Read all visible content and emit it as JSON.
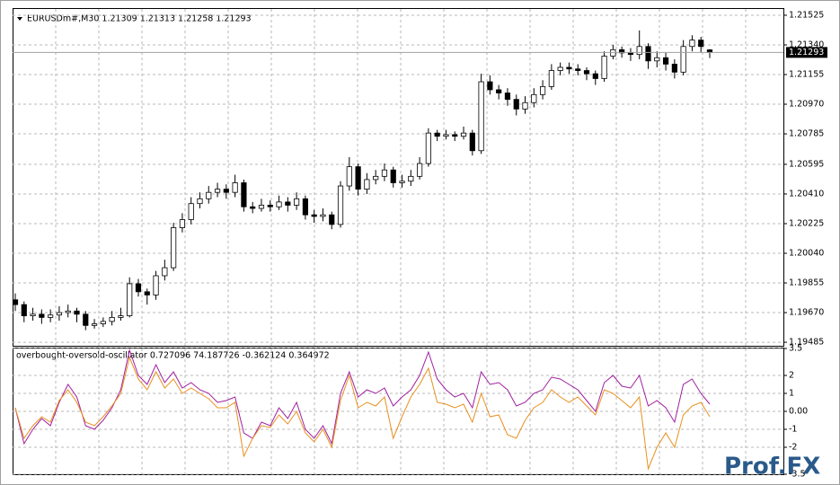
{
  "chart_data": [
    {
      "type": "candlestick",
      "title": "EURUSDm#,M30  1.21309 1.21313 1.21258 1.21293",
      "open": [
        1.1975,
        1.1972,
        1.1965,
        1.1966,
        1.1964,
        1.19655,
        1.1967,
        1.1968,
        1.1966,
        1.1959,
        1.196,
        1.19615,
        1.1964,
        1.1965,
        1.1985,
        1.198,
        1.1978,
        1.199,
        1.1995,
        1.202,
        1.2025,
        1.2035,
        1.2038,
        1.2042,
        1.2044,
        1.2042,
        1.2048,
        1.2033,
        1.2032,
        1.2034,
        1.2033,
        1.2036,
        1.2034,
        1.2038,
        1.2028,
        1.2027,
        1.2028,
        1.2022,
        1.2046,
        1.2058,
        1.2044,
        1.205,
        1.2052,
        1.2056,
        1.2048,
        1.2049,
        1.2052,
        1.206,
        1.2079,
        1.2077,
        1.2078,
        1.2077,
        1.2079,
        1.2068,
        1.2111,
        1.2106,
        1.2104,
        1.21,
        1.2094,
        1.2098,
        1.2103,
        1.2108,
        1.2118,
        1.212,
        1.2119,
        1.2118,
        1.2116,
        1.2113,
        1.2127,
        1.2131,
        1.2129,
        1.2128,
        1.2133,
        1.2124,
        1.2126,
        1.2122,
        1.2117,
        1.2133,
        1.2137,
        1.21309
      ],
      "high": [
        1.1979,
        1.1974,
        1.197,
        1.1969,
        1.1969,
        1.1971,
        1.1972,
        1.197,
        1.1968,
        1.1963,
        1.1964,
        1.1968,
        1.197,
        1.1989,
        1.1988,
        1.1982,
        1.1993,
        1.2,
        1.2023,
        1.2029,
        1.2039,
        1.2042,
        1.2046,
        1.2048,
        1.2047,
        1.2053,
        1.205,
        1.2036,
        1.2038,
        1.2037,
        1.204,
        1.2039,
        1.2042,
        1.204,
        1.2031,
        1.2032,
        1.203,
        1.2049,
        1.2064,
        1.206,
        1.2054,
        1.2056,
        1.206,
        1.2058,
        1.2053,
        1.2056,
        1.2064,
        1.2082,
        1.2081,
        1.2081,
        1.208,
        1.2083,
        1.2081,
        1.2116,
        1.2115,
        1.2109,
        1.2107,
        1.2103,
        1.2102,
        1.2107,
        1.2112,
        1.2122,
        1.2123,
        1.2123,
        1.2122,
        1.212,
        1.2118,
        1.213,
        1.2134,
        1.2133,
        1.2132,
        1.2143,
        1.2135,
        1.213,
        1.2129,
        1.2125,
        1.2137,
        1.214,
        1.2139,
        1.21313
      ],
      "low": [
        1.1968,
        1.1961,
        1.1962,
        1.196,
        1.1961,
        1.1962,
        1.1964,
        1.1961,
        1.1956,
        1.1957,
        1.1958,
        1.1959,
        1.1962,
        1.1964,
        1.1977,
        1.1972,
        1.1975,
        1.1987,
        1.1993,
        1.2017,
        1.2022,
        1.2032,
        1.2035,
        1.2039,
        1.2038,
        1.2039,
        1.203,
        1.2029,
        1.203,
        1.203,
        1.2031,
        1.203,
        1.2031,
        1.2025,
        1.2023,
        1.2024,
        1.2019,
        1.202,
        1.2043,
        1.204,
        1.2041,
        1.2047,
        1.2049,
        1.2045,
        1.2045,
        1.2046,
        1.205,
        1.2058,
        1.2074,
        1.2075,
        1.2074,
        1.2075,
        1.2065,
        1.2066,
        1.2103,
        1.21,
        1.2096,
        1.209,
        1.2091,
        1.2095,
        1.21,
        1.2106,
        1.2115,
        1.2116,
        1.2115,
        1.2112,
        1.2109,
        1.2111,
        1.2125,
        1.2126,
        1.2124,
        1.2125,
        1.2119,
        1.212,
        1.2118,
        1.2113,
        1.2115,
        1.213,
        1.2129,
        1.21258
      ],
      "close": [
        1.1972,
        1.1965,
        1.1966,
        1.1964,
        1.19655,
        1.1967,
        1.1968,
        1.1966,
        1.1959,
        1.196,
        1.19615,
        1.1964,
        1.1965,
        1.1985,
        1.198,
        1.1978,
        1.199,
        1.1995,
        1.202,
        1.2025,
        1.2035,
        1.2038,
        1.2042,
        1.2044,
        1.2042,
        1.2048,
        1.2033,
        1.2032,
        1.2034,
        1.2033,
        1.2036,
        1.2034,
        1.2038,
        1.2028,
        1.2027,
        1.2028,
        1.2022,
        1.2046,
        1.2058,
        1.2044,
        1.205,
        1.2052,
        1.2056,
        1.2048,
        1.2049,
        1.2052,
        1.206,
        1.2079,
        1.2077,
        1.2078,
        1.2077,
        1.2079,
        1.2068,
        1.2111,
        1.2106,
        1.2104,
        1.21,
        1.2094,
        1.2098,
        1.2103,
        1.2108,
        1.2118,
        1.212,
        1.2119,
        1.2118,
        1.2116,
        1.2113,
        1.2127,
        1.2131,
        1.2129,
        1.2128,
        1.2133,
        1.2124,
        1.2126,
        1.2122,
        1.2117,
        1.2133,
        1.2137,
        1.2133,
        1.21293
      ],
      "up_color": "#ffffff",
      "down_color": "#000000",
      "ylim": [
        1.19463,
        1.21564
      ],
      "yticks": [
        1.21525,
        {
          "value": 1.2134,
          "label": "1.21340"
        },
        1.21155,
        {
          "value": 1.2097,
          "label": "1.20970"
        },
        1.20785,
        1.20595,
        {
          "value": 1.2041,
          "label": "1.20410"
        },
        1.20225,
        {
          "value": 1.2004,
          "label": "1.20040"
        },
        1.19855,
        {
          "value": 1.1967,
          "label": "1.19670"
        },
        1.19485
      ],
      "last_price": 1.21293,
      "grid": true
    },
    {
      "type": "line",
      "title": "overbought-oversold-oscillator 0.727096 74.187726 -0.362124 0.364972",
      "series": [
        {
          "color": "#a020a0",
          "values": [
            0.2,
            -1.8,
            -1.0,
            -0.4,
            -0.8,
            0.5,
            1.5,
            0.8,
            -0.8,
            -1.0,
            -0.5,
            0.2,
            1.2,
            3.4,
            2.0,
            1.5,
            2.6,
            1.6,
            2.2,
            1.3,
            1.6,
            1.2,
            1.0,
            0.5,
            0.6,
            0.8,
            -1.2,
            -1.5,
            -0.6,
            -0.8,
            0.2,
            -0.4,
            0.5,
            -1.0,
            -1.5,
            -0.8,
            -1.8,
            1.0,
            2.2,
            0.8,
            1.2,
            1.0,
            1.3,
            0.3,
            0.8,
            1.2,
            2.0,
            3.3,
            1.8,
            1.2,
            0.8,
            1.0,
            0.2,
            2.2,
            1.5,
            1.6,
            1.2,
            0.3,
            0.5,
            1.0,
            1.2,
            1.9,
            1.8,
            1.5,
            1.2,
            0.6,
            0.0,
            1.6,
            2.0,
            1.4,
            1.3,
            2.0,
            0.3,
            0.6,
            0.2,
            -0.6,
            1.5,
            1.8,
            1.0,
            0.4
          ]
        },
        {
          "color": "#e89020",
          "values": [
            0.2,
            -1.5,
            -0.8,
            -0.3,
            -0.6,
            0.6,
            1.2,
            0.5,
            -0.6,
            -0.8,
            -0.3,
            0.3,
            1.0,
            3.0,
            1.8,
            1.2,
            2.2,
            1.3,
            1.8,
            1.0,
            1.3,
            1.0,
            0.7,
            0.2,
            0.2,
            0.5,
            -2.5,
            -1.5,
            -0.8,
            -0.9,
            -0.2,
            -0.7,
            0.0,
            -1.2,
            -1.7,
            -1.0,
            -2.0,
            0.6,
            2.0,
            0.2,
            0.5,
            0.3,
            0.8,
            -1.5,
            -0.3,
            0.8,
            1.5,
            2.4,
            0.5,
            0.4,
            0.2,
            0.4,
            -0.6,
            1.0,
            -0.3,
            -0.2,
            -1.3,
            -1.5,
            -0.5,
            0.2,
            0.5,
            1.2,
            0.8,
            0.5,
            0.8,
            0.3,
            -0.2,
            1.2,
            1.0,
            0.6,
            0.2,
            0.8,
            -3.2,
            -2.0,
            -1.2,
            -2.0,
            -0.2,
            0.3,
            0.5,
            -0.3
          ]
        }
      ],
      "ylim": [
        -3.5,
        3.5
      ],
      "yticks": [
        3.5,
        2,
        1,
        {
          "value": 0,
          "label": "0.00"
        },
        -1,
        -2,
        -3.5
      ],
      "grid": true
    }
  ],
  "watermark": "Prof.FX"
}
